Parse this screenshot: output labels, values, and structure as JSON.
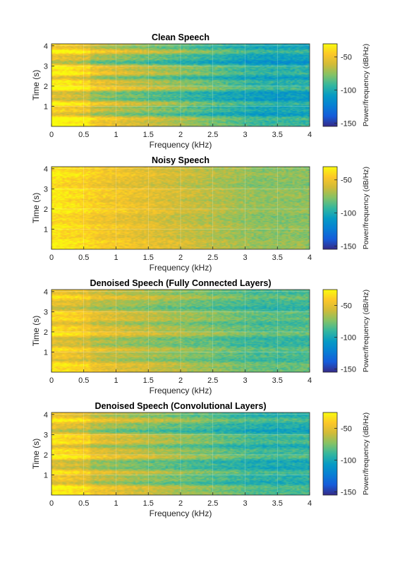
{
  "figure": {
    "colormap": "parula",
    "chart_data": [
      {
        "type": "heatmap",
        "title": "Clean Speech",
        "xlabel": "Frequency (kHz)",
        "ylabel": "Time (s)",
        "xlim": [
          0,
          4
        ],
        "ylim": [
          0,
          4.1
        ],
        "xticks": [
          "0",
          "0.5",
          "1",
          "1.5",
          "2",
          "2.5",
          "3",
          "3.5",
          "4"
        ],
        "yticks": [
          "1",
          "2",
          "3",
          "4"
        ],
        "colorbar": {
          "label": "Power/frequency (dB/Hz)",
          "range": [
            -155,
            -30
          ],
          "ticks": [
            "-50",
            "-100",
            "-150"
          ]
        },
        "profile": {
          "low_freq_level_db": -50,
          "high_freq_level_db": -100,
          "speech_contrast": 1.0
        }
      },
      {
        "type": "heatmap",
        "title": "Noisy Speech",
        "xlabel": "Frequency (kHz)",
        "ylabel": "Time (s)",
        "xlim": [
          0,
          4
        ],
        "ylim": [
          0,
          4.1
        ],
        "xticks": [
          "0",
          "0.5",
          "1",
          "1.5",
          "2",
          "2.5",
          "3",
          "3.5",
          "4"
        ],
        "yticks": [
          "1",
          "2",
          "3",
          "4"
        ],
        "colorbar": {
          "label": "Power/frequency (dB/Hz)",
          "range": [
            -155,
            -30
          ],
          "ticks": [
            "-50",
            "-100",
            "-150"
          ]
        },
        "profile": {
          "low_freq_level_db": -38,
          "high_freq_level_db": -75,
          "speech_contrast": 0.25
        }
      },
      {
        "type": "heatmap",
        "title": "Denoised Speech (Fully Connected Layers)",
        "xlabel": "Frequency (kHz)",
        "ylabel": "Time (s)",
        "xlim": [
          0,
          4
        ],
        "ylim": [
          0,
          4.1
        ],
        "xticks": [
          "0",
          "0.5",
          "1",
          "1.5",
          "2",
          "2.5",
          "3",
          "3.5",
          "4"
        ],
        "yticks": [
          "1",
          "2",
          "3",
          "4"
        ],
        "colorbar": {
          "label": "Power/frequency (dB/Hz)",
          "range": [
            -155,
            -25
          ],
          "ticks": [
            "-50",
            "-100",
            "-150"
          ]
        },
        "profile": {
          "low_freq_level_db": -48,
          "high_freq_level_db": -85,
          "speech_contrast": 0.65
        }
      },
      {
        "type": "heatmap",
        "title": "Denoised Speech (Convolutional Layers)",
        "xlabel": "Frequency (kHz)",
        "ylabel": "Time (s)",
        "xlim": [
          0,
          4
        ],
        "ylim": [
          0,
          4.1
        ],
        "xticks": [
          "0",
          "0.5",
          "1",
          "1.5",
          "2",
          "2.5",
          "3",
          "3.5",
          "4"
        ],
        "yticks": [
          "1",
          "2",
          "3",
          "4"
        ],
        "colorbar": {
          "label": "Power/frequency (dB/Hz)",
          "range": [
            -155,
            -25
          ],
          "ticks": [
            "-50",
            "-100",
            "-150"
          ]
        },
        "profile": {
          "low_freq_level_db": -48,
          "high_freq_level_db": -92,
          "speech_contrast": 0.85
        }
      }
    ]
  }
}
